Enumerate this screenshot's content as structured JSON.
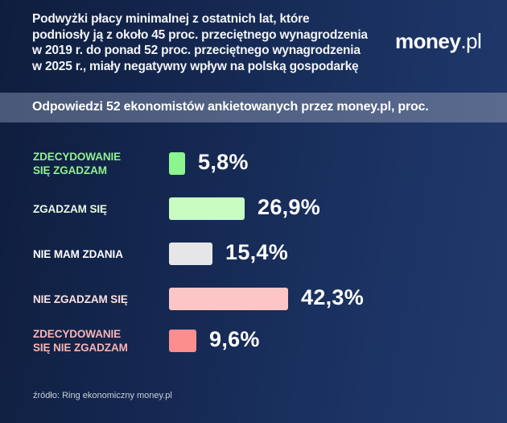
{
  "header": {
    "title": "Podwyżki płacy minimalnej z ostatnich lat, które podniosły ją z około 45 proc. przeciętnego wynagrodzenia w 2019 r. do ponad 52 proc. przeciętnego wynagrodzenia w 2025 r., miały negatywny wpływ na polską gospodarkę",
    "title_lines": [
      "Podwyżki płacy minimalnej z ostatnich lat, które",
      "podniosły ją z około 45 proc. przeciętnego wynagrodzenia",
      "w 2019 r. do ponad 52 proc. przeciętnego wynagrodzenia",
      "w 2025 r., miały negatywny wpływ na polską gospodarkę"
    ],
    "logo_main": "money",
    "logo_suffix": ".pl"
  },
  "subtitle": "Odpowiedzi 52 ekonomistów ankietowanych przez money.pl, proc.",
  "source": "źródło: Ring ekonomiczny money.pl",
  "colors": {
    "strongly_agree": "#8cf58e",
    "agree": "#c8fcc0",
    "no_opinion": "#e6e6e8",
    "disagree": "#fdc6c6",
    "strongly_disagree": "#fc8e8e",
    "label_strongly_agree": "#8ff28f",
    "label_agree": "#e8fbe4",
    "label_no_opinion": "#ffffff",
    "label_disagree": "#fde2e2",
    "label_strongly_disagree": "#f9b4b4"
  },
  "chart_data": {
    "type": "bar",
    "orientation": "horizontal",
    "title": "Podwyżki płacy minimalnej z ostatnich lat, które podniosły ją z około 45 proc. przeciętnego wynagrodzenia w 2019 r. do ponad 52 proc. przeciętnego wynagrodzenia w 2025 r., miały negatywny wpływ na polską gospodarkę",
    "subtitle": "Odpowiedzi 52 ekonomistów ankietowanych przez money.pl, proc.",
    "categories": [
      "ZDECYDOWANIE SIĘ ZGADZAM",
      "ZGADZAM SIĘ",
      "NIE MAM ZDANIA",
      "NIE ZGADZAM SIĘ",
      "ZDECYDOWANIE SIĘ NIE ZGADZAM"
    ],
    "values": [
      5.8,
      26.9,
      15.4,
      42.3,
      9.6
    ],
    "value_labels": [
      "5,8%",
      "26,9%",
      "15,4%",
      "42,3%",
      "9,6%"
    ],
    "unit": "%",
    "xlabel": "",
    "ylabel": "",
    "grid": false,
    "legend": null,
    "source": "źródło: Ring ekonomiczny money.pl"
  },
  "rows": [
    {
      "label_1": "ZDECYDOWANIE",
      "label_2": "SIĘ ZGADZAM",
      "value": "5,8%"
    },
    {
      "label_1": "ZGADZAM SIĘ",
      "value": "26,9%"
    },
    {
      "label_1": "NIE MAM ZDANIA",
      "value": "15,4%"
    },
    {
      "label_1": "NIE ZGADZAM SIĘ",
      "value": "42,3%"
    },
    {
      "label_1": "ZDECYDOWANIE",
      "label_2": "SIĘ NIE ZGADZAM",
      "value": "9,6%"
    }
  ]
}
